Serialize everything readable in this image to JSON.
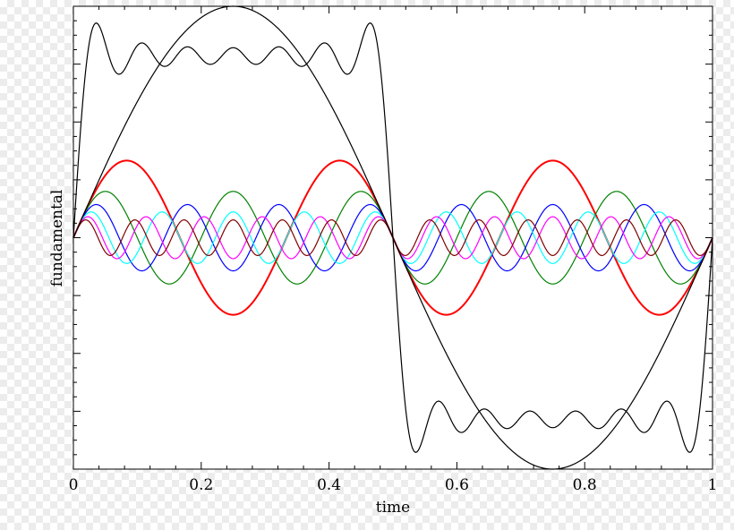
{
  "chart_data": {
    "type": "line",
    "title": "",
    "xlabel": "time",
    "ylabel": "fundamental",
    "xlim": [
      0,
      1
    ],
    "ylim": [
      -1.6,
      1.6
    ],
    "grid": false,
    "x_ticks": [
      "0",
      "0.2",
      "0.4",
      "0.6",
      "0.8",
      "1"
    ],
    "x_tick_values": [
      0,
      0.2,
      0.4,
      0.6,
      0.8,
      1
    ],
    "y_major_tick_values": [
      -1.2,
      -0.8,
      -0.4,
      0,
      0.4,
      0.8,
      1.2
    ],
    "series": [
      {
        "function": "sin",
        "harmonic": 1,
        "amplitude": 1.6,
        "color": "#000000"
      },
      {
        "function": "square_partial_sum",
        "harmonics": [
          1,
          3,
          5,
          7,
          9,
          11,
          13
        ],
        "amplitude": 1.6,
        "color": "#000000"
      },
      {
        "function": "sin",
        "harmonic": 3,
        "amplitude": 0.533,
        "color": "#ff0000"
      },
      {
        "function": "sin",
        "harmonic": 5,
        "amplitude": 0.32,
        "color": "#008000"
      },
      {
        "function": "sin",
        "harmonic": 7,
        "amplitude": 0.229,
        "color": "#0000ff"
      },
      {
        "function": "sin",
        "harmonic": 9,
        "amplitude": 0.178,
        "color": "#00ffff"
      },
      {
        "function": "sin",
        "harmonic": 11,
        "amplitude": 0.145,
        "color": "#ff00ff"
      },
      {
        "function": "sin",
        "harmonic": 13,
        "amplitude": 0.123,
        "color": "#800000"
      }
    ]
  }
}
